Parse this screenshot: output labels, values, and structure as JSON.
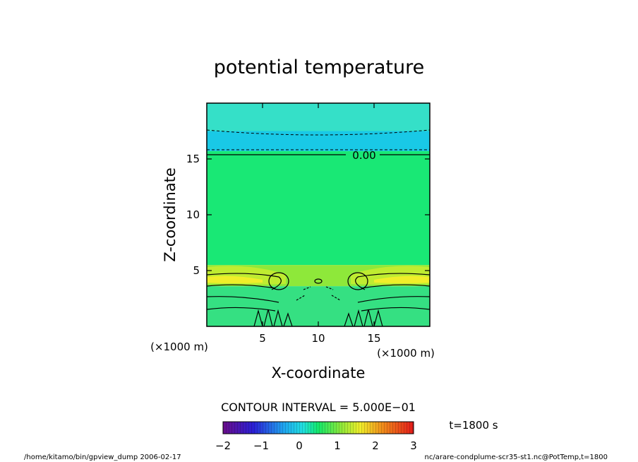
{
  "chart_data": {
    "type": "heatmap",
    "title": "potential temperature",
    "xlabel": "X-coordinate",
    "ylabel": "Z-coordinate",
    "x_unit": "(×1000 m)",
    "y_unit": "(×1000 m)",
    "xlim": [
      0,
      20
    ],
    "ylim": [
      0,
      20
    ],
    "x_ticks": [
      5,
      10,
      15
    ],
    "y_ticks": [
      5,
      10,
      15
    ],
    "x_tick_labels": [
      "5",
      "10",
      "15"
    ],
    "y_tick_labels": [
      "5",
      "10",
      "15"
    ],
    "contour_label": "0.00",
    "contour_interval_text": "CONTOUR INTERVAL = 5.000E−01",
    "time_label": "t=1800 s",
    "colorbar": {
      "min": -2,
      "max": 3,
      "ticks": [
        -2,
        -1,
        0,
        1,
        2,
        3
      ],
      "tick_labels": [
        "−2",
        "−1",
        "0",
        "1",
        "2",
        "3"
      ]
    },
    "bands": [
      {
        "z_range": [
          17.5,
          20.0
        ],
        "value": -0.2,
        "color": "#35e0c8"
      },
      {
        "z_range": [
          15.7,
          17.5
        ],
        "value": -0.5,
        "color": "#19c9e6"
      },
      {
        "z_range": [
          5.5,
          15.7
        ],
        "value": 0.1,
        "color": "#19e875"
      },
      {
        "z_range": [
          3.6,
          5.5
        ],
        "value": 0.7,
        "color": "#8ee83a"
      },
      {
        "z_range": [
          0.0,
          3.6
        ],
        "value": 0.3,
        "color": "#35e082"
      }
    ]
  },
  "footer": {
    "left": "/home/kitamo/bin/gpview_dump  2006-02-17",
    "right": "nc/arare-condplume-scr35-st1.nc@PotTemp,t=1800"
  }
}
